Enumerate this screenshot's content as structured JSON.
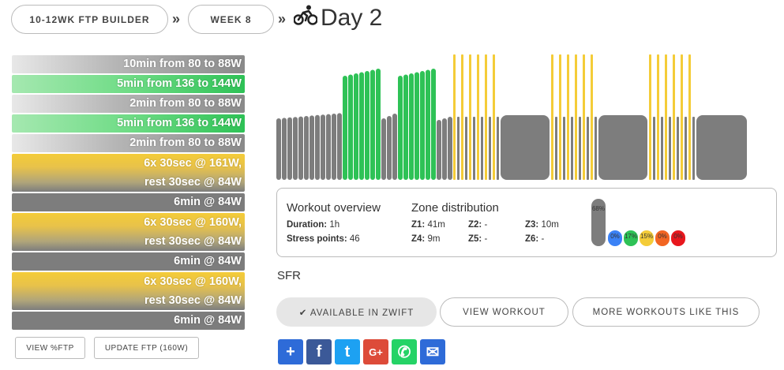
{
  "breadcrumb": {
    "plan": "10-12WK FTP BUILDER",
    "week": "WEEK 8",
    "separator": "»"
  },
  "title": "Day 2",
  "steps": [
    {
      "text": "10min from 80 to 88W",
      "zone": "gray"
    },
    {
      "text": "5min from 136 to 144W",
      "zone": "green"
    },
    {
      "text": "2min from 80 to 88W",
      "zone": "gray"
    },
    {
      "text": "5min from 136 to 144W",
      "zone": "green"
    },
    {
      "text": "2min from 80 to 88W",
      "zone": "gray"
    },
    {
      "line1": "6x 30sec @ 161W,",
      "line2": "rest 30sec @ 84W",
      "zone": "yellow"
    },
    {
      "text": "6min @ 84W",
      "zone": "dark"
    },
    {
      "line1": "6x 30sec @ 160W,",
      "line2": "rest 30sec @ 84W",
      "zone": "yellow"
    },
    {
      "text": "6min @ 84W",
      "zone": "dark"
    },
    {
      "line1": "6x 30sec @ 160W,",
      "line2": "rest 30sec @ 84W",
      "zone": "yellow"
    },
    {
      "text": "6min @ 84W",
      "zone": "dark"
    }
  ],
  "buttons": {
    "view_ftp": "VIEW %FTP",
    "update_ftp": "UPDATE FTP (160W)"
  },
  "overview": {
    "heading": "Workout overview",
    "duration_label": "Duration:",
    "duration_value": "1h",
    "stress_label": "Stress points:",
    "stress_value": "46"
  },
  "zones": {
    "heading": "Zone distribution",
    "z1_label": "Z1:",
    "z1_value": "41m",
    "z2_label": "Z2:",
    "z2_value": "-",
    "z3_label": "Z3:",
    "z3_value": "10m",
    "z4_label": "Z4:",
    "z4_value": "9m",
    "z5_label": "Z5:",
    "z5_value": "-",
    "z6_label": "Z6:",
    "z6_value": "-",
    "bars": [
      {
        "label": "68%",
        "percent": 68,
        "color": "#7d7d7d"
      },
      {
        "label": "0%",
        "percent": 0,
        "color": "#3b82f6"
      },
      {
        "label": "17%",
        "percent": 17,
        "color": "#2ec256"
      },
      {
        "label": "15%",
        "percent": 15,
        "color": "#f4cc38"
      },
      {
        "label": "0%",
        "percent": 0,
        "color": "#f26522"
      },
      {
        "label": "0%",
        "percent": 0,
        "color": "#e8171d"
      }
    ]
  },
  "workout_name": "SFR",
  "actions": {
    "zwift": "✔ AVAILABLE IN ZWIFT",
    "view": "VIEW WORKOUT",
    "more": "MORE WORKOUTS LIKE THIS"
  },
  "share": [
    {
      "name": "addthis",
      "glyph": "+",
      "color": "#2e6bd8"
    },
    {
      "name": "facebook",
      "glyph": "f",
      "color": "#3b5998"
    },
    {
      "name": "twitter",
      "glyph": "t",
      "color": "#1da1f2"
    },
    {
      "name": "google-plus",
      "glyph": "G+",
      "color": "#dd4b39"
    },
    {
      "name": "whatsapp",
      "glyph": "✆",
      "color": "#25d366"
    },
    {
      "name": "email",
      "glyph": "✉",
      "color": "#2e6bd8"
    }
  ],
  "colors": {
    "gray": "#7d7d7d",
    "green": "#2ec256",
    "yellow": "#f4cc38"
  }
}
